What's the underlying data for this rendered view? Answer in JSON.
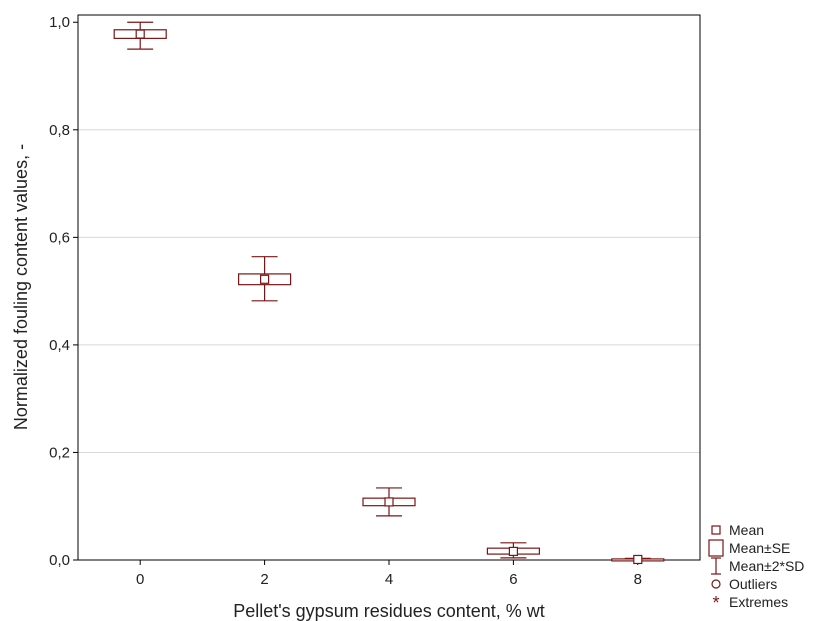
{
  "chart_data": {
    "type": "box",
    "xlabel": "Pellet's gypsum residues content, % wt",
    "ylabel": "Normalized fouling content values, -",
    "ylim": [
      0,
      1
    ],
    "xlim": [
      -1,
      9
    ],
    "x_ticks": [
      "0",
      "2",
      "4",
      "6",
      "8"
    ],
    "y_ticks": [
      "0,0",
      "0,2",
      "0,4",
      "0,6",
      "0,8",
      "1,0"
    ],
    "grid": "horizontal",
    "legend_position": "bottom-right, outside plot",
    "color": "#7a1515",
    "groups": [
      {
        "x": 0,
        "mean": 0.978,
        "se_low": 0.97,
        "se_high": 0.986,
        "sd2_low": 0.95,
        "sd2_high": 1.0
      },
      {
        "x": 2,
        "mean": 0.522,
        "se_low": 0.512,
        "se_high": 0.532,
        "sd2_low": 0.482,
        "sd2_high": 0.564
      },
      {
        "x": 4,
        "mean": 0.108,
        "se_low": 0.101,
        "se_high": 0.115,
        "sd2_low": 0.082,
        "sd2_high": 0.134
      },
      {
        "x": 6,
        "mean": 0.016,
        "se_low": 0.011,
        "se_high": 0.022,
        "sd2_low": 0.004,
        "sd2_high": 0.032
      },
      {
        "x": 8,
        "mean": 0.001,
        "se_low": 0.0,
        "se_high": 0.002,
        "sd2_low": 0.0,
        "sd2_high": 0.003
      }
    ],
    "legend": [
      {
        "symbol": "mean",
        "label": "Mean"
      },
      {
        "symbol": "se-box",
        "label": "Mean±SE"
      },
      {
        "symbol": "whisker",
        "label": "Mean±2*SD"
      },
      {
        "symbol": "circle",
        "label": "Outliers"
      },
      {
        "symbol": "asterisk",
        "label": "Extremes"
      }
    ]
  }
}
